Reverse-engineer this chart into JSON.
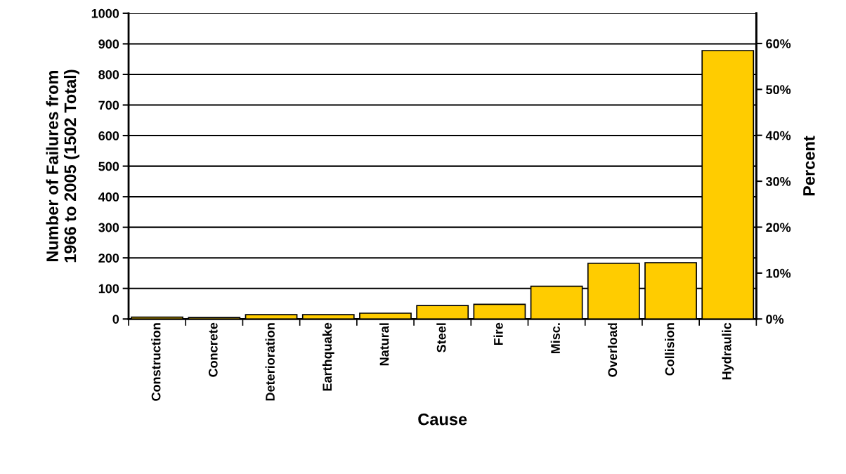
{
  "chart_data": {
    "type": "bar",
    "xlabel": "Cause",
    "ylabel": "Number of Failures from\n1966 to 2005 (1502 Total)",
    "y2label": "Percent",
    "categories": [
      "Construction",
      "Concrete",
      "Deterioration",
      "Earthquake",
      "Natural",
      "Steel",
      "Fire",
      "Misc.",
      "Overload",
      "Collision",
      "Hydraulic"
    ],
    "values": [
      6,
      5,
      14,
      14,
      19,
      44,
      48,
      107,
      182,
      184,
      878
    ],
    "color": "#ffcc00",
    "ylim": [
      0,
      1000
    ],
    "yticks": [
      0,
      100,
      200,
      300,
      400,
      500,
      600,
      700,
      800,
      900,
      1000
    ],
    "y2lim": [
      0,
      66.58
    ],
    "y2ticks": [
      {
        "value": 0,
        "label": "0%"
      },
      {
        "value": 10,
        "label": "10%"
      },
      {
        "value": 20,
        "label": "20%"
      },
      {
        "value": 30,
        "label": "30%"
      },
      {
        "value": 40,
        "label": "40%"
      },
      {
        "value": 50,
        "label": "50%"
      },
      {
        "value": 60,
        "label": "60%"
      }
    ],
    "grid": "y"
  }
}
